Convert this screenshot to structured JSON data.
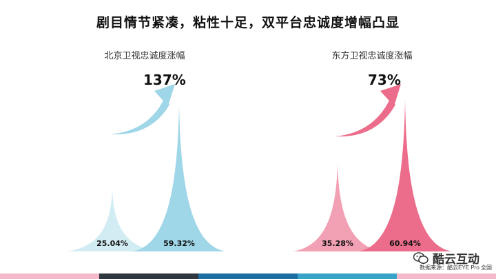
{
  "title": "剧目情节紧凑，粘性十足，双平台忠诚度增幅凸显",
  "chart_data": [
    {
      "type": "area",
      "title": "北京卫视忠诚度涨幅",
      "increase_label": "137%",
      "values": [
        25.04,
        59.32
      ],
      "value_labels": [
        "25.04%",
        "59.32%"
      ],
      "colors": [
        "#d2ecf4",
        "#9fd6e8"
      ],
      "arrow_color": "#9fd6e8"
    },
    {
      "type": "area",
      "title": "东方卫视忠诚度涨幅",
      "increase_label": "73%",
      "values": [
        35.28,
        60.94
      ],
      "value_labels": [
        "35.28%",
        "60.94%"
      ],
      "colors": [
        "#f2a0b3",
        "#ec6d8b"
      ],
      "arrow_color": "#ec6d8b"
    }
  ],
  "bottom_bar_colors": [
    "#f4b9c8",
    "#2f3640",
    "#1d6fa3",
    "#37a3c7",
    "#f4b9c8"
  ],
  "brand": "酷云互动",
  "source": "数据来源：酷云EYE Pro 全国"
}
